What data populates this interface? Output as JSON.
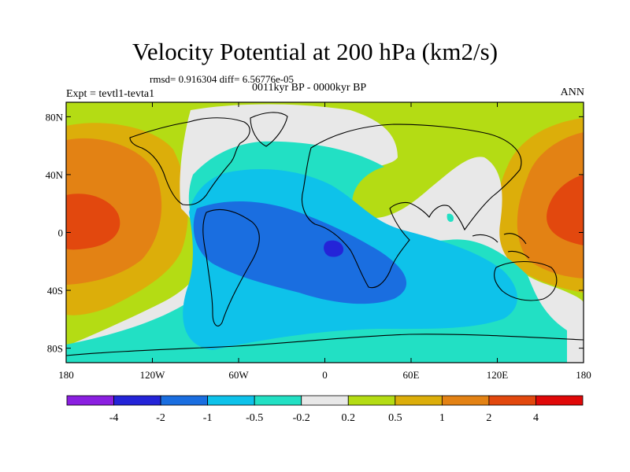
{
  "title": "Velocity Potential at 200 hPa (km2/s)",
  "stats": "rmsd= 0.916304 diff= 6.56776e-05",
  "subtitle": "0011kyr BP - 0000kyr BP",
  "left_label": "Expt = tevtl1-tevta1",
  "right_label": "ANN",
  "chart_data": {
    "type": "heatmap",
    "projection": "cylindrical-equidistant",
    "xlim": [
      -180,
      180
    ],
    "ylim": [
      -90,
      90
    ],
    "x_ticks": [
      {
        "value": -180,
        "label": "180"
      },
      {
        "value": -120,
        "label": "120W"
      },
      {
        "value": -60,
        "label": "60W"
      },
      {
        "value": 0,
        "label": "0"
      },
      {
        "value": 60,
        "label": "60E"
      },
      {
        "value": 120,
        "label": "120E"
      },
      {
        "value": 180,
        "label": "180"
      }
    ],
    "y_ticks": [
      {
        "value": 80,
        "label": "80N"
      },
      {
        "value": 40,
        "label": "40N"
      },
      {
        "value": 0,
        "label": "0"
      },
      {
        "value": -40,
        "label": "40S"
      },
      {
        "value": -80,
        "label": "80S"
      }
    ],
    "colorbar": {
      "levels": [
        "-4",
        "-2",
        "-1",
        "-0.5",
        "-0.2",
        "0.2",
        "0.5",
        "1",
        "2",
        "4"
      ],
      "colors": [
        "#8a1fe0",
        "#2424d8",
        "#1a6ee0",
        "#0ec2ea",
        "#22e0c4",
        "#e8e8e8",
        "#b4dc14",
        "#dcae0a",
        "#e38214",
        "#e2480e",
        "#e00808"
      ]
    }
  }
}
